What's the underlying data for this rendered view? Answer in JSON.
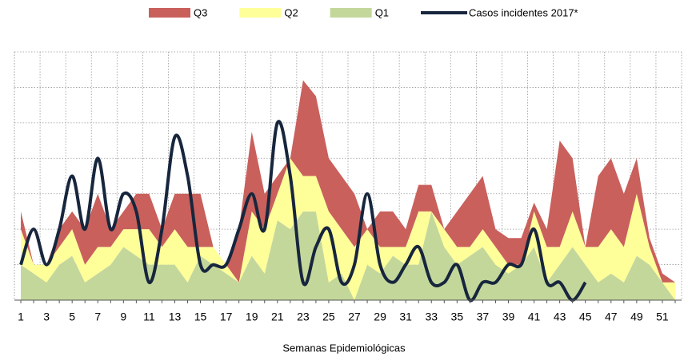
{
  "chart_data": {
    "type": "area",
    "x_label": "Semanas Epidemiológicas",
    "categories": [
      1,
      null,
      3,
      null,
      5,
      null,
      7,
      null,
      9,
      null,
      11,
      null,
      13,
      null,
      15,
      null,
      17,
      null,
      19,
      null,
      21,
      null,
      23,
      null,
      25,
      null,
      27,
      null,
      29,
      null,
      31,
      null,
      33,
      null,
      35,
      null,
      37,
      null,
      39,
      null,
      41,
      null,
      43,
      null,
      45,
      null,
      47,
      null,
      49,
      null,
      51,
      null
    ],
    "ylim": [
      0,
      7
    ],
    "yticks": [
      0,
      1,
      2,
      3,
      4,
      5,
      6,
      7
    ],
    "grid": true,
    "legend": "top",
    "series": [
      {
        "name": "Q3",
        "color": "#c9605c",
        "values": [
          0.5,
          0,
          0,
          0.5,
          0.5,
          1,
          1.5,
          0.5,
          0.5,
          1,
          1,
          0.5,
          1,
          1.5,
          1.5,
          0,
          0,
          1.5,
          2.25,
          1,
          0.5,
          0,
          2.7,
          2.25,
          1.5,
          1.5,
          1.5,
          0,
          1,
          1,
          0.5,
          0.75,
          0.75,
          0,
          1,
          1.5,
          1.5,
          0.5,
          0.75,
          0.75,
          0.25,
          0.5,
          3,
          1.5,
          0,
          2,
          2,
          1.5,
          1,
          0.25,
          0.25,
          0
        ]
      },
      {
        "name": "Q2",
        "color": "#ffff99",
        "values": [
          1,
          0.25,
          0.5,
          0.5,
          0.75,
          0.5,
          0.75,
          0.5,
          0.5,
          0.75,
          1,
          0.5,
          1,
          1,
          0.25,
          0.5,
          0.25,
          0,
          1.25,
          1.25,
          0.75,
          2,
          1,
          1,
          2,
          1.25,
          1.5,
          1,
          0.75,
          0.25,
          0.5,
          1.5,
          0,
          0.5,
          0.5,
          0.25,
          0.5,
          0.5,
          0.25,
          0,
          1,
          1,
          0.5,
          1,
          0.5,
          1,
          1.25,
          1,
          1.75,
          0.5,
          0,
          0.5
        ]
      },
      {
        "name": "Q1",
        "color": "#c4d79b",
        "values": [
          1,
          0.75,
          0.5,
          1,
          1.25,
          0.5,
          0.75,
          1,
          1.5,
          1.25,
          1,
          1,
          1,
          0.5,
          1.25,
          1,
          0.75,
          0.5,
          1.25,
          0.75,
          2.25,
          2,
          2.5,
          2.5,
          0.5,
          0.75,
          0,
          1,
          0.75,
          1.25,
          1,
          1,
          2.5,
          1.5,
          1,
          1.25,
          1.5,
          1,
          0.75,
          1,
          1.5,
          0.5,
          1,
          1.5,
          1,
          0.5,
          0.75,
          0.5,
          1.25,
          1,
          0.5,
          0
        ]
      },
      {
        "name": "Casos incidentes 2017*",
        "type": "line",
        "color": "#17263d",
        "values": [
          1,
          2,
          1,
          2,
          3.5,
          2,
          4,
          2,
          3,
          2.5,
          0.5,
          2,
          4.6,
          3.5,
          1,
          1,
          1,
          2,
          3,
          2,
          5,
          3.5,
          0.5,
          1.5,
          2,
          0.5,
          1,
          3,
          1,
          0.5,
          1,
          1.5,
          0.5,
          0.5,
          1,
          0,
          0.5,
          0.5,
          1,
          1,
          2,
          0.5,
          0.5,
          0,
          0.5,
          null,
          null,
          null,
          null,
          null,
          null,
          null
        ]
      }
    ]
  }
}
